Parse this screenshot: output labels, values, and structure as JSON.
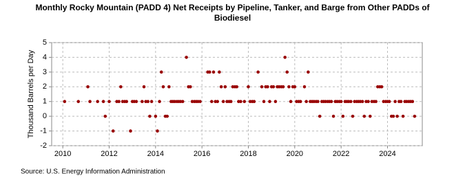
{
  "chart_data": {
    "type": "scatter",
    "title": "Monthly Rocky Mountain (PADD 4) Net Receipts by Pipeline, Tanker, and Barge from Other PADDs of Biodiesel",
    "y_label": "Thousand Barrels per Day",
    "source": "Source: U.S. Energy Information Administration",
    "color": "#990000",
    "grid": true,
    "x": [
      2010.08,
      2010.67,
      2011.08,
      2011.17,
      2011.5,
      2011.75,
      2011.83,
      2012.0,
      2012.17,
      2012.33,
      2012.42,
      2012.5,
      2012.58,
      2012.67,
      2012.75,
      2012.92,
      2013.0,
      2013.08,
      2013.17,
      2013.42,
      2013.5,
      2013.58,
      2013.67,
      2013.75,
      2013.83,
      2014.0,
      2014.08,
      2014.17,
      2014.25,
      2014.33,
      2014.42,
      2014.5,
      2014.58,
      2014.67,
      2014.75,
      2014.83,
      2014.92,
      2015.0,
      2015.08,
      2015.17,
      2015.33,
      2015.42,
      2015.5,
      2015.58,
      2015.67,
      2015.75,
      2015.83,
      2015.92,
      2016.25,
      2016.33,
      2016.42,
      2016.5,
      2016.58,
      2016.67,
      2016.75,
      2016.83,
      2016.92,
      2017.0,
      2017.08,
      2017.17,
      2017.25,
      2017.33,
      2017.42,
      2017.5,
      2017.58,
      2017.67,
      2017.83,
      2018.0,
      2018.08,
      2018.17,
      2018.25,
      2018.42,
      2018.58,
      2018.67,
      2018.75,
      2018.83,
      2018.92,
      2019.0,
      2019.08,
      2019.17,
      2019.25,
      2019.33,
      2019.42,
      2019.5,
      2019.58,
      2019.67,
      2019.75,
      2019.83,
      2019.92,
      2020.0,
      2020.08,
      2020.17,
      2020.25,
      2020.42,
      2020.5,
      2020.58,
      2020.67,
      2020.75,
      2020.83,
      2020.92,
      2021.0,
      2021.08,
      2021.17,
      2021.25,
      2021.33,
      2021.42,
      2021.5,
      2021.58,
      2021.67,
      2021.75,
      2021.83,
      2021.92,
      2022.0,
      2022.08,
      2022.17,
      2022.25,
      2022.33,
      2022.42,
      2022.5,
      2022.58,
      2022.67,
      2022.75,
      2022.83,
      2022.92,
      2023.0,
      2023.08,
      2023.17,
      2023.25,
      2023.33,
      2023.42,
      2023.5,
      2023.58,
      2023.67,
      2023.75,
      2023.83,
      2023.92,
      2024.0,
      2024.08,
      2024.17,
      2024.25,
      2024.33,
      2024.42,
      2024.5,
      2024.58,
      2024.67,
      2024.75,
      2024.83,
      2024.92,
      2025.0,
      2025.08,
      2025.17
    ],
    "values": [
      1,
      1,
      2,
      1,
      1,
      1,
      0,
      1,
      -1,
      1,
      1,
      2,
      1,
      1,
      1,
      -1,
      1,
      1,
      1,
      1,
      2,
      1,
      1,
      0,
      1,
      0,
      -1,
      1,
      3,
      2,
      0,
      0,
      2,
      1,
      1,
      1,
      1,
      1,
      1,
      1,
      4,
      2,
      2,
      1,
      1,
      1,
      1,
      1,
      3,
      3,
      1,
      3,
      1,
      1,
      3,
      2,
      1,
      2,
      1,
      1,
      1,
      2,
      2,
      2,
      1,
      1,
      1,
      2,
      1,
      1,
      1,
      3,
      2,
      1,
      2,
      2,
      1,
      2,
      2,
      1,
      2,
      2,
      2,
      2,
      4,
      3,
      2,
      1,
      2,
      2,
      1,
      1,
      1,
      2,
      1,
      3,
      1,
      1,
      1,
      1,
      1,
      0,
      1,
      1,
      1,
      1,
      1,
      1,
      0,
      1,
      1,
      1,
      1,
      0,
      1,
      1,
      1,
      1,
      0,
      1,
      1,
      1,
      1,
      1,
      0,
      1,
      1,
      0,
      1,
      1,
      1,
      2,
      2,
      2,
      1,
      1,
      1,
      1,
      0,
      0,
      1,
      0,
      1,
      1,
      0,
      1,
      1,
      1,
      1,
      1,
      0
    ],
    "xlim": [
      2009.52,
      2025.5
    ],
    "xticks": [
      2010,
      2012,
      2014,
      2016,
      2018,
      2020,
      2022,
      2024
    ],
    "ylim": [
      -2,
      5
    ],
    "yticks": [
      -2,
      -1,
      0,
      1,
      2,
      3,
      4,
      5
    ]
  }
}
